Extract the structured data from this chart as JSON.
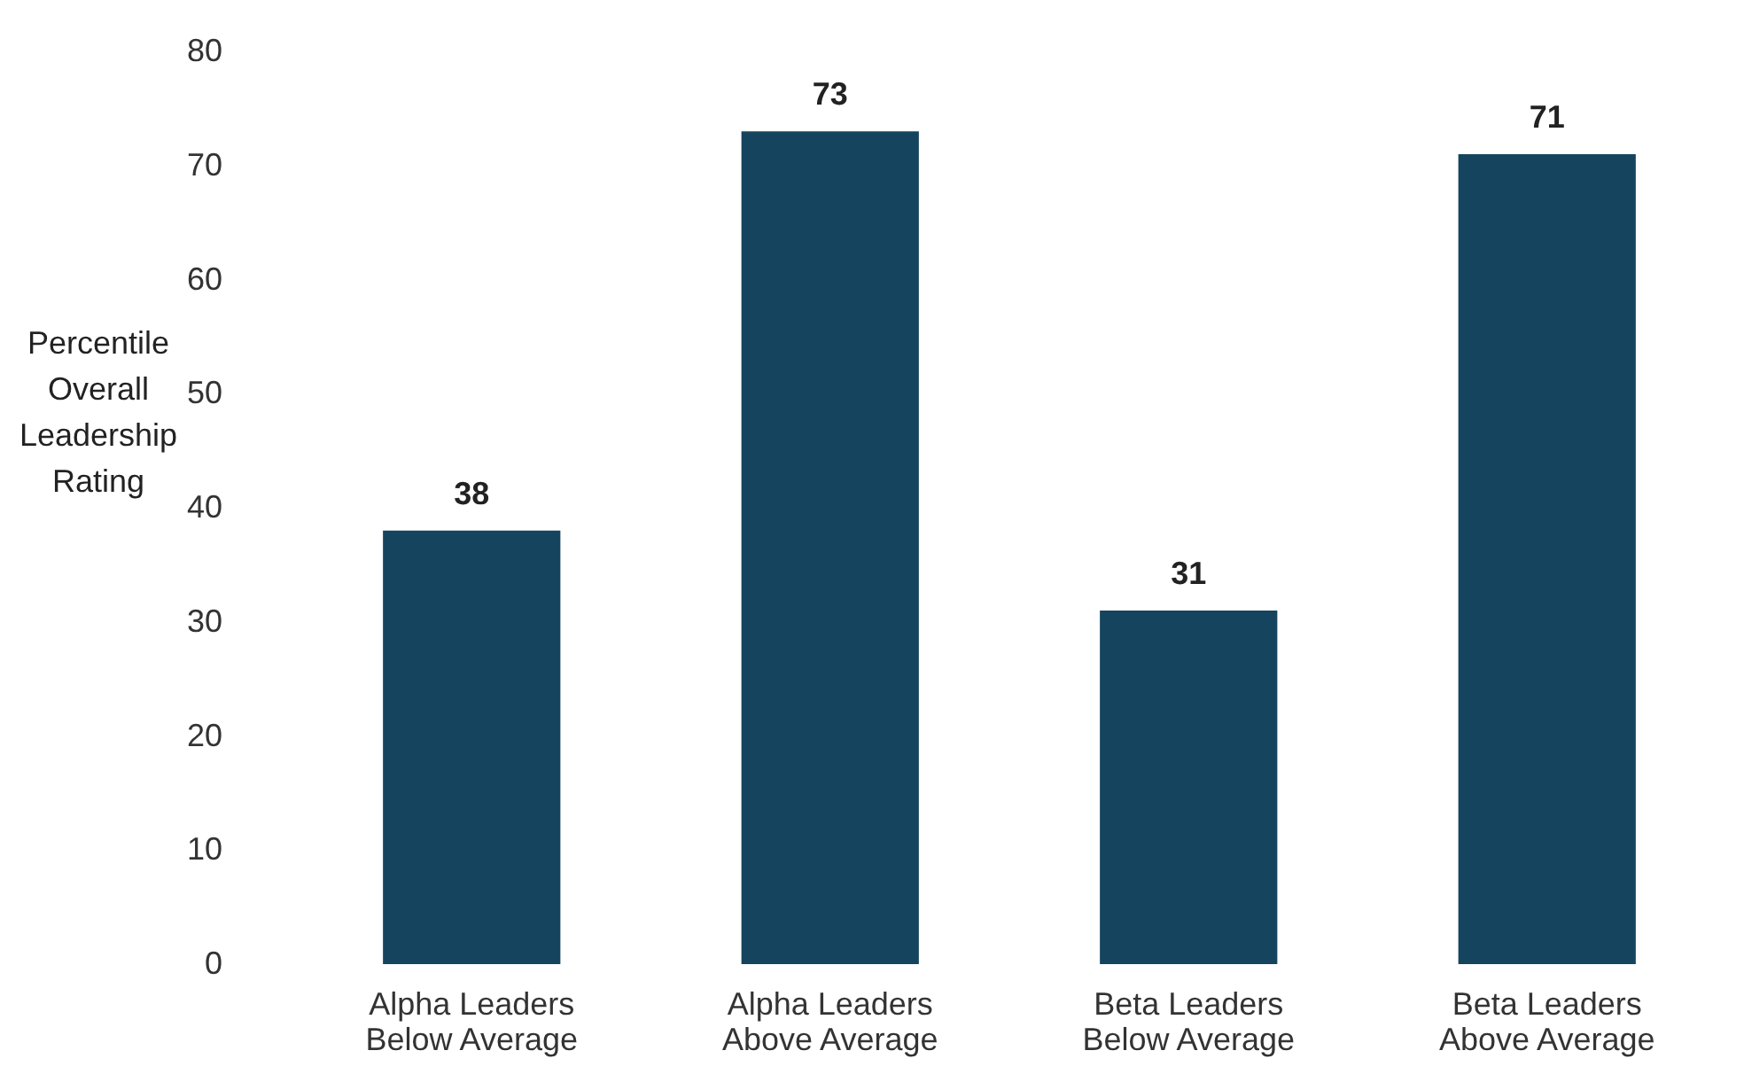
{
  "chart_data": {
    "type": "bar",
    "ylabel": "Percentile Overall Leadership Rating",
    "categories": [
      "Alpha Leaders Below Average",
      "Alpha Leaders Above Average",
      "Beta Leaders Below Average",
      "Beta Leaders Above Average"
    ],
    "values": [
      38,
      73,
      31,
      71
    ],
    "color": "#15445f",
    "ylim": [
      0,
      80
    ],
    "yticks": [
      0,
      10,
      20,
      30,
      40,
      50,
      60,
      70,
      80
    ],
    "data_labels": true,
    "grid": false
  }
}
